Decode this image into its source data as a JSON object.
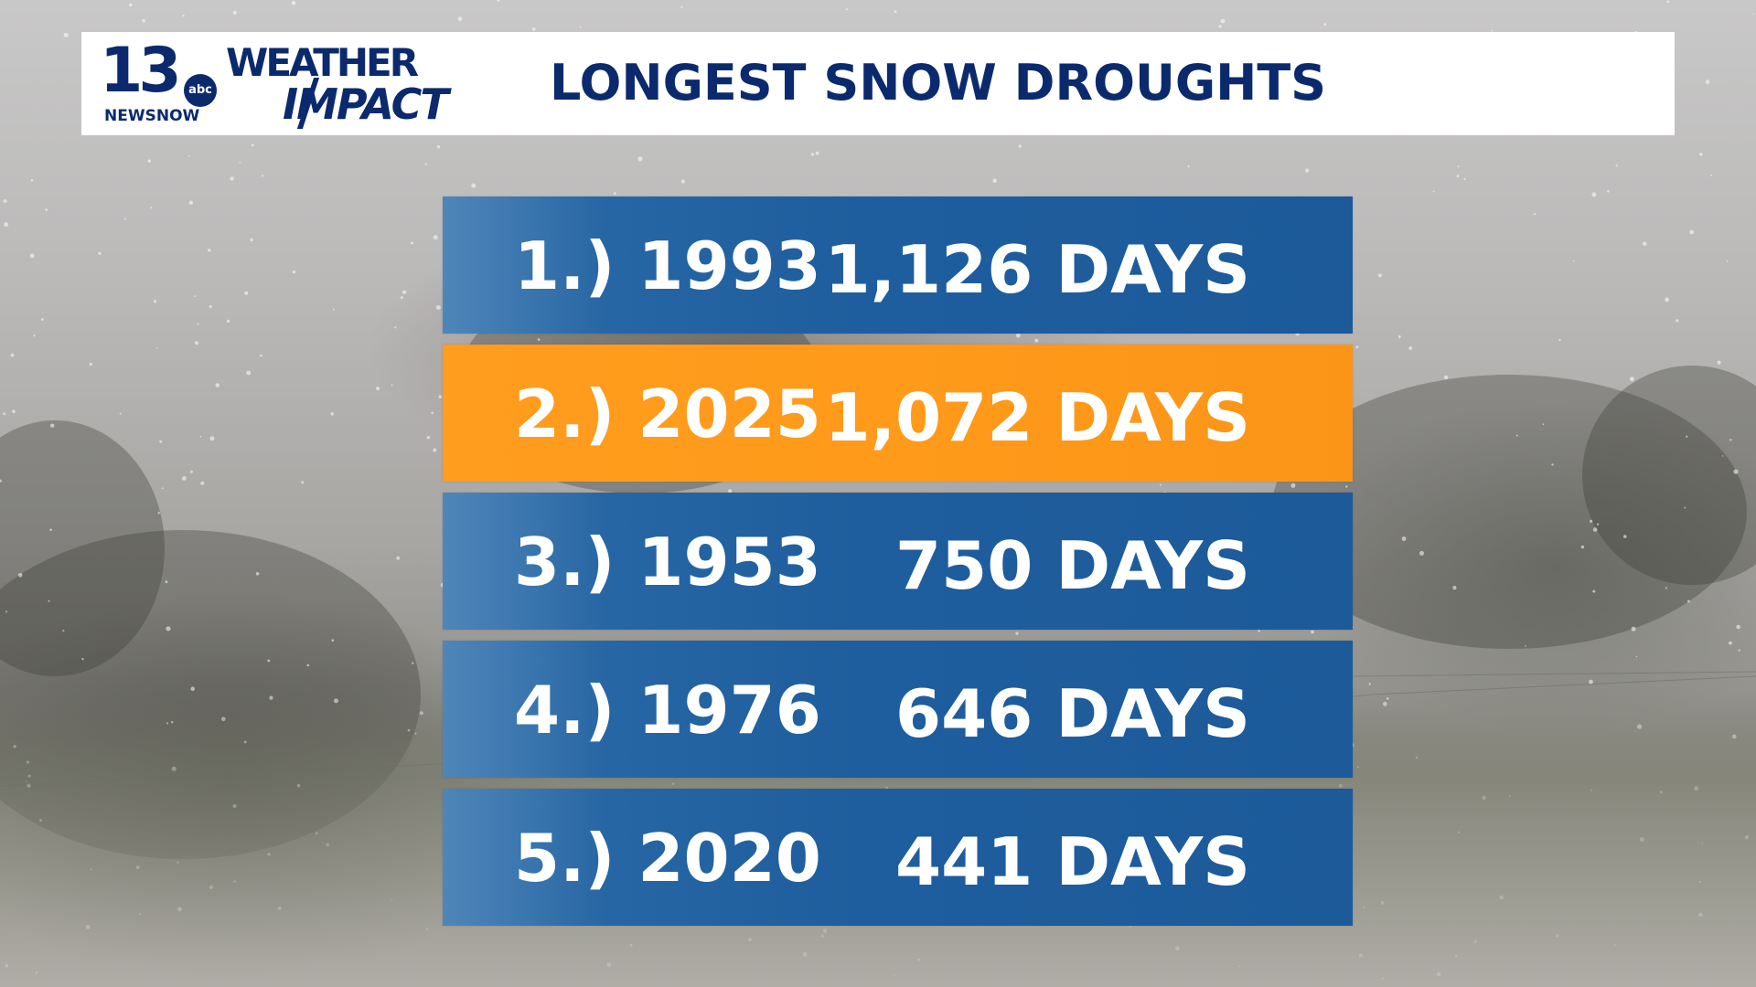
{
  "header": {
    "logo_number": "13",
    "logo_network": "abc",
    "logo_tagline": "NEWSNOW",
    "logo_weather": "WEATHER",
    "logo_impact": "IMPACT",
    "title": "LONGEST SNOW DROUGHTS"
  },
  "rows": [
    {
      "rank": "1.) 1993",
      "days": "1,126 DAYS",
      "highlight": false
    },
    {
      "rank": "2.) 2025",
      "days": "1,072 DAYS",
      "highlight": true
    },
    {
      "rank": "3.) 1953",
      "days": "750 DAYS",
      "highlight": false
    },
    {
      "rank": "4.) 1976",
      "days": "646 DAYS",
      "highlight": false
    },
    {
      "rank": "5.) 2020",
      "days": "441 DAYS",
      "highlight": false
    }
  ],
  "colors": {
    "brand_navy": "#0b2a6e",
    "row_blue": "#1f5e9e",
    "row_highlight_orange": "#ff9a1a",
    "text_white": "#ffffff"
  },
  "icons": [
    "abc-logo-icon"
  ]
}
